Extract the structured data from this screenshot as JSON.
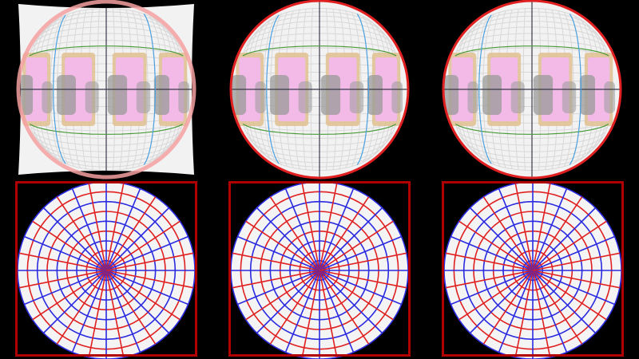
{
  "scene": {
    "background": "#000000",
    "grid_paper": "#f2f2f2",
    "grid_line": "#d8d8d8",
    "axis_line": "#3a3a4a",
    "green_line": "#4a9a3a",
    "blue_line": "#4aa0e0",
    "pig_pink": "#f4b8f0",
    "pig_gray": "#9a9a9a",
    "pig_tan": "#e0c090",
    "frame_red": "#b00000",
    "ring_red": "#e02020",
    "ring_pink": "#f4a0a0",
    "polar_bg": "#f4f4f4",
    "polar_red": "#e02020",
    "polar_blue": "#2a2ae0"
  },
  "top_row": [
    {
      "id": "fisheye-warped-square",
      "shape": "warped-square",
      "ring": "pink"
    },
    {
      "id": "fisheye-circle-a",
      "shape": "circle",
      "ring": "red"
    },
    {
      "id": "fisheye-circle-b",
      "shape": "circle",
      "ring": "red"
    }
  ],
  "bottom_row": [
    {
      "id": "polar-grid-a",
      "rings": 9,
      "spokes": 32
    },
    {
      "id": "polar-grid-b",
      "rings": 9,
      "spokes": 32
    },
    {
      "id": "polar-grid-c",
      "rings": 9,
      "spokes": 32
    }
  ]
}
